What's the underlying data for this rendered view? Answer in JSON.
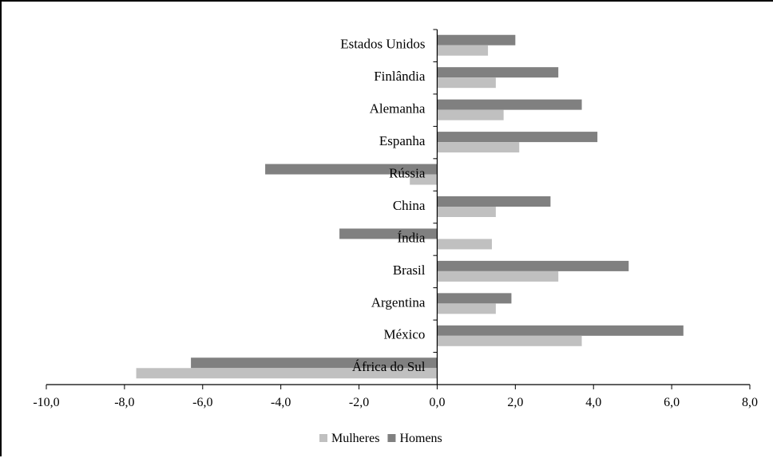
{
  "chart_data": {
    "type": "bar",
    "orientation": "horizontal",
    "categories": [
      "Estados Unidos",
      "Finlândia",
      "Alemanha",
      "Espanha",
      "Rússia",
      "China",
      "Índia",
      "Brasil",
      "Argentina",
      "México",
      "África do Sul"
    ],
    "series": [
      {
        "name": "Homens",
        "color": "#808080",
        "values": [
          2.0,
          3.1,
          3.7,
          4.1,
          -4.4,
          2.9,
          -2.5,
          4.9,
          1.9,
          6.3,
          -6.3
        ]
      },
      {
        "name": "Mulheres",
        "color": "#c0c0c0",
        "values": [
          1.3,
          1.5,
          1.7,
          2.1,
          -0.7,
          1.5,
          1.4,
          3.1,
          1.5,
          3.7,
          -7.7
        ]
      }
    ],
    "xlim": [
      -10,
      8
    ],
    "x_ticks": [
      "-10,0",
      "-8,0",
      "-6,0",
      "-4,0",
      "-2,0",
      "0,0",
      "2,0",
      "4,0",
      "6,0",
      "8,0"
    ],
    "legend": {
      "position": "bottom",
      "items": [
        "Mulheres",
        "Homens"
      ]
    },
    "grid": false
  }
}
